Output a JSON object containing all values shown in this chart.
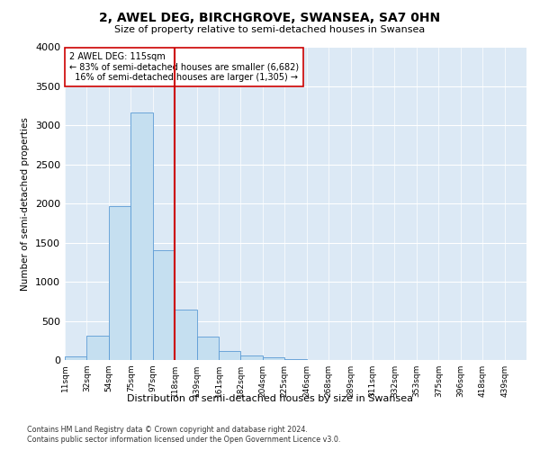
{
  "title": "2, AWEL DEG, BIRCHGROVE, SWANSEA, SA7 0HN",
  "subtitle": "Size of property relative to semi-detached houses in Swansea",
  "xlabel": "Distribution of semi-detached houses by size in Swansea",
  "ylabel": "Number of semi-detached properties",
  "bin_labels": [
    "11sqm",
    "32sqm",
    "54sqm",
    "75sqm",
    "97sqm",
    "118sqm",
    "139sqm",
    "161sqm",
    "182sqm",
    "204sqm",
    "225sqm",
    "246sqm",
    "268sqm",
    "289sqm",
    "311sqm",
    "332sqm",
    "353sqm",
    "375sqm",
    "396sqm",
    "418sqm",
    "439sqm"
  ],
  "bar_heights": [
    50,
    315,
    1970,
    3170,
    1400,
    640,
    295,
    110,
    60,
    35,
    10,
    5,
    2,
    0,
    0,
    0,
    0,
    0,
    0,
    0,
    0
  ],
  "bar_color": "#c5dff0",
  "bar_edge_color": "#5b9bd5",
  "property_bin_index": 5,
  "property_label": "2 AWEL DEG: 115sqm",
  "pct_smaller": 83,
  "pct_larger": 16,
  "n_smaller": 6682,
  "n_larger": 1305,
  "vline_color": "#cc0000",
  "footer_line1": "Contains HM Land Registry data © Crown copyright and database right 2024.",
  "footer_line2": "Contains public sector information licensed under the Open Government Licence v3.0.",
  "ylim": [
    0,
    4000
  ],
  "yticks": [
    0,
    500,
    1000,
    1500,
    2000,
    2500,
    3000,
    3500,
    4000
  ],
  "plot_bg_color": "#dce9f5"
}
